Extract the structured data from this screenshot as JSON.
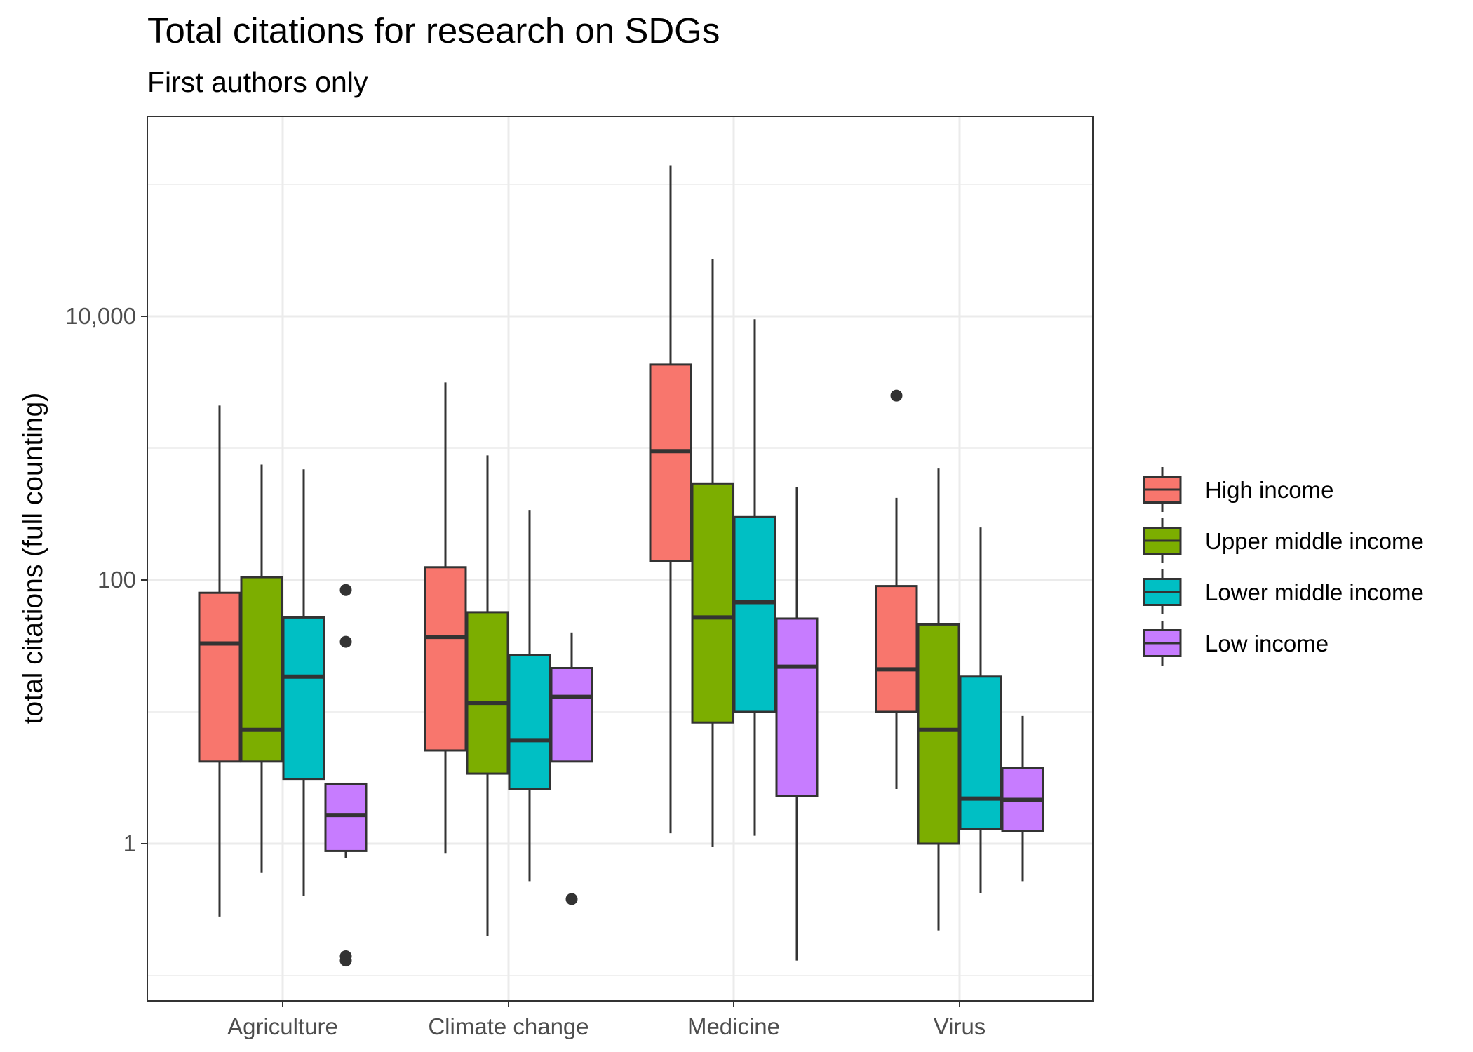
{
  "chart_data": {
    "type": "box",
    "title": "Total citations for research on SDGs",
    "subtitle": "First authors only",
    "xlabel": "",
    "ylabel": "total citations (full counting)",
    "y_scale": "log10",
    "ylim": [
      0.1,
      200000
    ],
    "y_ticks": [
      1,
      100,
      10000
    ],
    "y_tick_labels": [
      "1",
      "100",
      "10,000"
    ],
    "grid": true,
    "legend_position": "right",
    "categories": [
      "Agriculture",
      "Climate change",
      "Medicine",
      "Virus"
    ],
    "series": [
      {
        "name": "High income",
        "color": "#F8766D",
        "boxes": [
          {
            "lower_whisker": 0.28,
            "q1": 4.2,
            "median": 33,
            "q3": 80,
            "upper_whisker": 2100,
            "outliers": []
          },
          {
            "lower_whisker": 0.85,
            "q1": 5.1,
            "median": 37,
            "q3": 125,
            "upper_whisker": 3150,
            "outliers": []
          },
          {
            "lower_whisker": 1.2,
            "q1": 140,
            "median": 950,
            "q3": 4300,
            "upper_whisker": 140000,
            "outliers": []
          },
          {
            "lower_whisker": 2.6,
            "q1": 10,
            "median": 21,
            "q3": 90,
            "upper_whisker": 420,
            "outliers": [
              2500
            ]
          }
        ]
      },
      {
        "name": "Upper middle income",
        "color": "#7CAE00",
        "boxes": [
          {
            "lower_whisker": 0.6,
            "q1": 4.2,
            "median": 7.3,
            "q3": 105,
            "upper_whisker": 750,
            "outliers": []
          },
          {
            "lower_whisker": 0.2,
            "q1": 3.4,
            "median": 11.7,
            "q3": 57,
            "upper_whisker": 880,
            "outliers": []
          },
          {
            "lower_whisker": 0.95,
            "q1": 8.3,
            "median": 52,
            "q3": 540,
            "upper_whisker": 27000,
            "outliers": []
          },
          {
            "lower_whisker": 0.22,
            "q1": 1.0,
            "median": 7.3,
            "q3": 46,
            "upper_whisker": 700,
            "outliers": []
          }
        ]
      },
      {
        "name": "Lower middle income",
        "color": "#00BFC4",
        "boxes": [
          {
            "lower_whisker": 0.4,
            "q1": 3.1,
            "median": 18.5,
            "q3": 52,
            "upper_whisker": 690,
            "outliers": []
          },
          {
            "lower_whisker": 0.52,
            "q1": 2.6,
            "median": 6.1,
            "q3": 27,
            "upper_whisker": 340,
            "outliers": []
          },
          {
            "lower_whisker": 1.15,
            "q1": 10,
            "median": 68,
            "q3": 300,
            "upper_whisker": 9500,
            "outliers": []
          },
          {
            "lower_whisker": 0.42,
            "q1": 1.3,
            "median": 2.2,
            "q3": 18.5,
            "upper_whisker": 250,
            "outliers": []
          }
        ]
      },
      {
        "name": "Low income",
        "color": "#C77CFF",
        "boxes": [
          {
            "lower_whisker": 0.78,
            "q1": 0.88,
            "median": 1.65,
            "q3": 2.85,
            "upper_whisker": 2.85,
            "outliers": [
              84,
              34,
              0.14,
              0.13
            ]
          },
          {
            "lower_whisker": 4.2,
            "q1": 4.2,
            "median": 13,
            "q3": 21.5,
            "upper_whisker": 40,
            "outliers": [
              0.38
            ]
          },
          {
            "lower_whisker": 0.13,
            "q1": 2.3,
            "median": 22,
            "q3": 51,
            "upper_whisker": 510,
            "outliers": []
          },
          {
            "lower_whisker": 0.52,
            "q1": 1.25,
            "median": 2.15,
            "q3": 3.75,
            "upper_whisker": 9.3,
            "outliers": []
          }
        ]
      }
    ]
  }
}
